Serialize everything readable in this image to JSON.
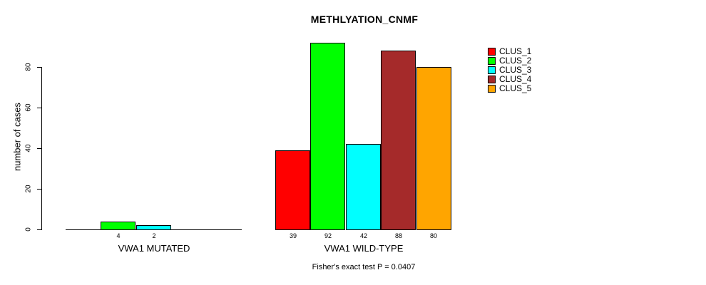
{
  "title": "METHLYATION_CNMF",
  "y_axis": {
    "label": "number of cases",
    "ticks": [
      0,
      20,
      40,
      60,
      80
    ]
  },
  "footer": "Fisher's exact test P = 0.0407",
  "legend": {
    "items": [
      {
        "label": "CLUS_1",
        "color": "#FF0000"
      },
      {
        "label": "CLUS_2",
        "color": "#00FF00"
      },
      {
        "label": "CLUS_3",
        "color": "#00FFFF"
      },
      {
        "label": "CLUS_4",
        "color": "#A52A2A"
      },
      {
        "label": "CLUS_5",
        "color": "#FFA500"
      }
    ]
  },
  "chart_data": {
    "type": "bar",
    "title": "METHLYATION_CNMF",
    "ylabel": "number of cases",
    "xlabel": "",
    "categories": [
      "VWA1 MUTATED",
      "VWA1 WILD-TYPE"
    ],
    "series": [
      {
        "name": "CLUS_1",
        "color": "#FF0000",
        "values": [
          0,
          39
        ]
      },
      {
        "name": "CLUS_2",
        "color": "#00FF00",
        "values": [
          4,
          92
        ]
      },
      {
        "name": "CLUS_3",
        "color": "#00FFFF",
        "values": [
          2,
          42
        ]
      },
      {
        "name": "CLUS_4",
        "color": "#A52A2A",
        "values": [
          0,
          88
        ]
      },
      {
        "name": "CLUS_5",
        "color": "#FFA500",
        "values": [
          0,
          80
        ]
      }
    ],
    "bar_labels": [
      [
        "",
        "4",
        "2",
        "",
        ""
      ],
      [
        "39",
        "92",
        "42",
        "88",
        "80"
      ]
    ],
    "yticks": [
      0,
      20,
      40,
      60,
      80
    ],
    "ylim": [
      0,
      92
    ],
    "grid": false,
    "legend_position": "topright",
    "annotation": "Fisher's exact test P = 0.0407"
  }
}
